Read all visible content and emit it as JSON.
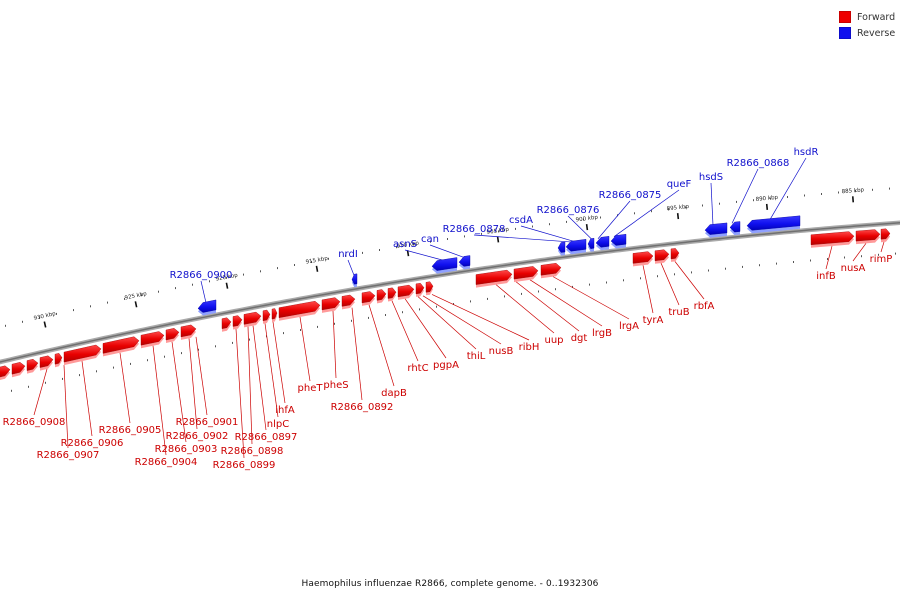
{
  "caption": "Haemophilus influenzae R2866, complete genome. - 0..1932306",
  "legend": {
    "items": [
      {
        "label": "Forward",
        "color": "#ee0000"
      },
      {
        "label": "Reverse",
        "color": "#1010ee"
      }
    ]
  },
  "colors": {
    "forward": "#ee0000",
    "reverse": "#1010ee",
    "axis": "#888888"
  },
  "axis": {
    "unit": "kbp",
    "ticks": [
      {
        "kbp": 885,
        "label": "885 kbp"
      },
      {
        "kbp": 890,
        "label": "890 kbp"
      },
      {
        "kbp": 895,
        "label": "895 kbp"
      },
      {
        "kbp": 900,
        "label": "900 kbp"
      },
      {
        "kbp": 905,
        "label": "905 kbp"
      },
      {
        "kbp": 910,
        "label": "910 kbp"
      },
      {
        "kbp": 915,
        "label": "915 kbp"
      },
      {
        "kbp": 920,
        "label": "920 kbp"
      },
      {
        "kbp": 925,
        "label": "925 kbp"
      },
      {
        "kbp": 930,
        "label": "930 kbp"
      }
    ]
  },
  "reverse_genes": [
    "hsdR",
    "R2866_0868",
    "hsdS",
    "queF",
    "R2866_0875",
    "R2866_0876",
    "csdA",
    "R2866_0878",
    "can",
    "asnS",
    "nrdI",
    "R2866_0900"
  ],
  "forward_genes": [
    "rimP",
    "nusA",
    "infB",
    "rbfA",
    "truB",
    "tyrA",
    "lrgA",
    "lrgB",
    "dgt",
    "uup",
    "ribH",
    "nusB",
    "thiL",
    "pgpA",
    "rhtC",
    "dapB",
    "R2866_0892",
    "pheS",
    "pheT",
    "ihfA",
    "nlpC",
    "R2866_0897",
    "R2866_0898",
    "R2866_0899",
    "R2866_0901",
    "R2866_0902",
    "R2866_0903",
    "R2866_0904",
    "R2866_0905",
    "R2866_0906",
    "R2866_0907",
    "R2866_0908"
  ]
}
